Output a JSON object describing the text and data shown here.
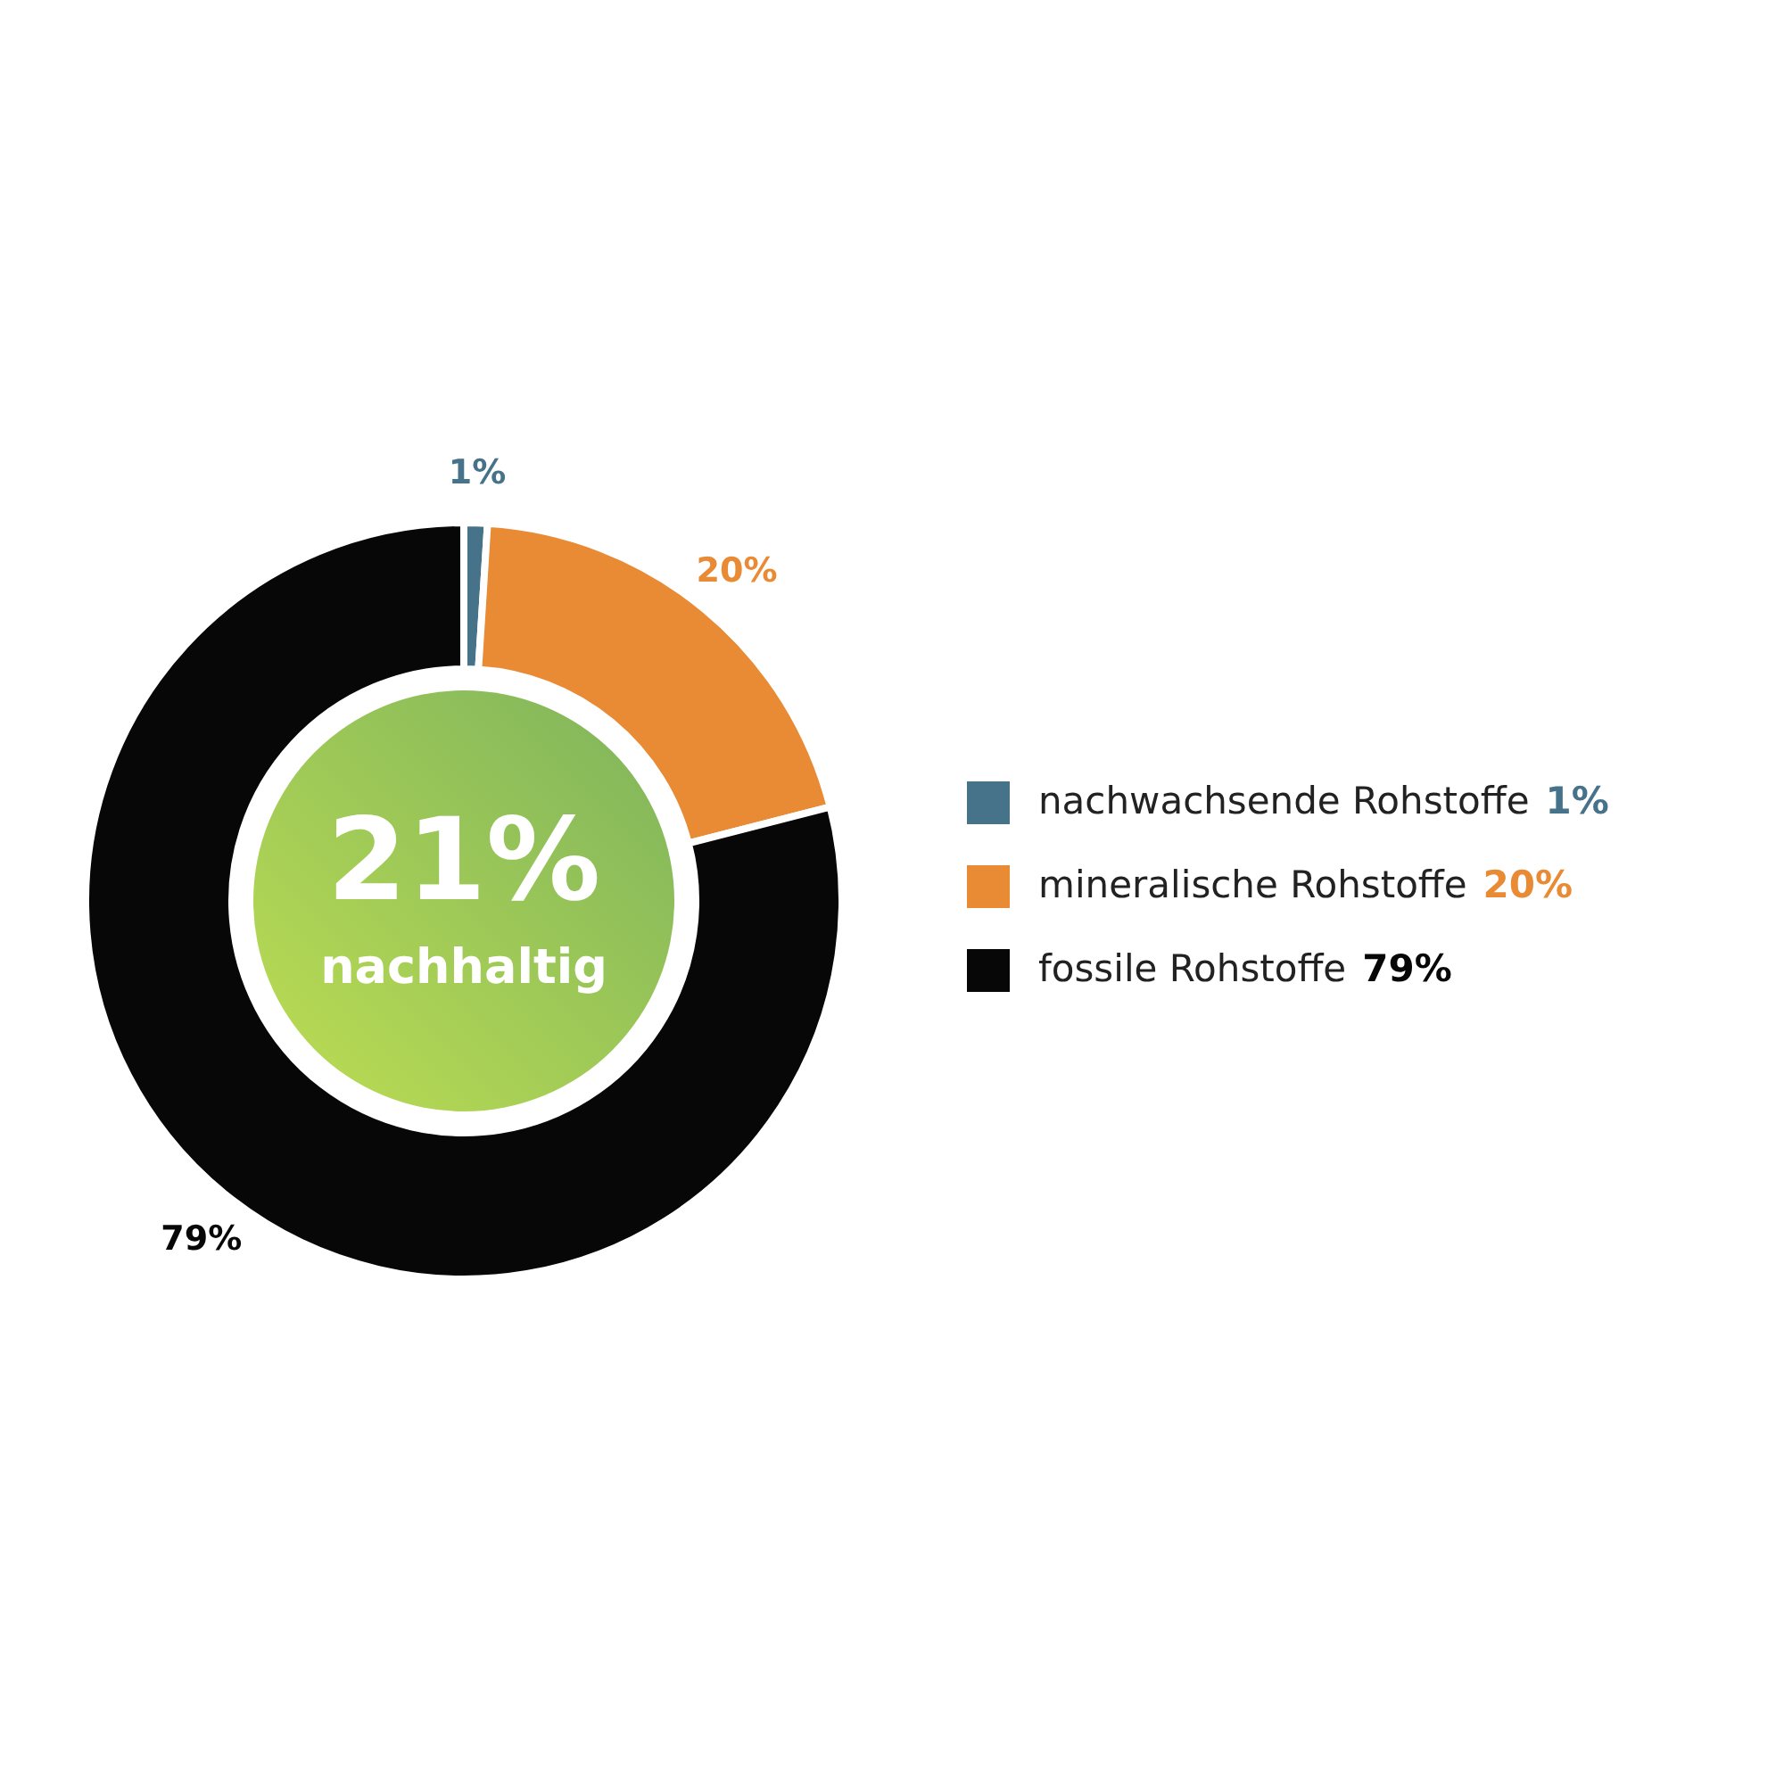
{
  "chart_data": {
    "type": "donut",
    "categories": [
      "nachwachsende Rohstoffe",
      "mineralische Rohstoffe",
      "fossile Rohstoffe"
    ],
    "values": [
      1,
      20,
      79
    ],
    "colors": [
      "#46738a",
      "#e98a35",
      "#070707"
    ],
    "value_labels": [
      "1%",
      "20%",
      "79%"
    ],
    "legend": "right",
    "annotations": [
      "21%",
      "nachhaltig"
    ]
  }
}
